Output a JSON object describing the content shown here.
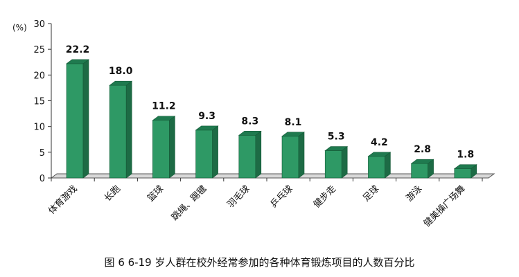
{
  "chart_data": {
    "type": "bar",
    "unit_label": "(%)",
    "categories": [
      "体育游戏",
      "长跑",
      "篮球",
      "跳绳、踢毽",
      "羽毛球",
      "乒乓球",
      "健步走",
      "足球",
      "游泳",
      "健美操广场舞"
    ],
    "values": [
      22.2,
      18.0,
      11.2,
      9.3,
      8.3,
      8.1,
      5.3,
      4.2,
      2.8,
      1.8
    ],
    "value_labels": [
      "22.2",
      "18.0",
      "11.2",
      "9.3",
      "8.3",
      "8.1",
      "5.3",
      "4.2",
      "2.8",
      "1.8"
    ],
    "ylim": [
      0,
      30
    ],
    "yticks": [
      0,
      5,
      10,
      15,
      20,
      25,
      30
    ],
    "grid": false,
    "legend": "none",
    "bar_color": "#2e9965",
    "bar_side_color": "#1d6b45",
    "bar_top_color": "#1f7a4f"
  },
  "caption": "图 6   6-19 岁人群在校外经常参加的各种体育锻炼项目的人数百分比"
}
